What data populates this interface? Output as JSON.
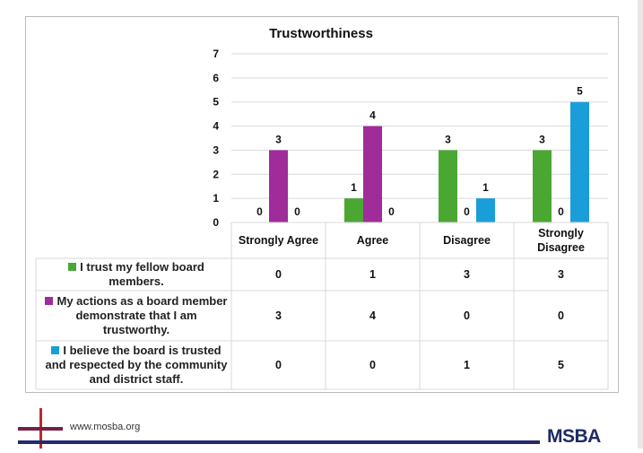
{
  "chart_data": {
    "type": "bar",
    "title": "Trustworthiness",
    "categories": [
      "Strongly Agree",
      "Agree",
      "Disagree",
      "Strongly Disagree"
    ],
    "series": [
      {
        "name": "I trust my fellow board members.",
        "color": "#4aa832",
        "values": [
          0,
          1,
          3,
          3
        ]
      },
      {
        "name": "My actions as a board member demonstrate that I am trustworthy.",
        "color": "#a02c9a",
        "values": [
          3,
          4,
          0,
          0
        ]
      },
      {
        "name": "I believe the board is trusted and respected by the community and district staff.",
        "color": "#1a9ed9",
        "values": [
          0,
          0,
          1,
          5
        ]
      }
    ],
    "ylim": [
      0,
      7
    ],
    "yticks": [
      0,
      1,
      2,
      3,
      4,
      5,
      6,
      7
    ],
    "grid": true,
    "legend": "data-table"
  },
  "footer": {
    "url": "www.mosba.org",
    "logo": "MSBA"
  }
}
